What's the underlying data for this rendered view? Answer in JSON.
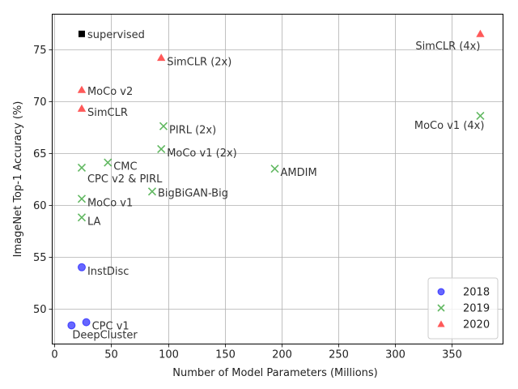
{
  "chart_data": {
    "type": "scatter",
    "title": "",
    "xlabel": "Number of Model Parameters (Millions)",
    "ylabel": "ImageNet Top-1 Accuracy (%)",
    "xlim": [
      -2,
      395
    ],
    "ylim": [
      46.6,
      78.4
    ],
    "xticks": [
      0,
      50,
      100,
      150,
      200,
      250,
      300,
      350
    ],
    "yticks": [
      50,
      55,
      60,
      65,
      70,
      75
    ],
    "grid": true,
    "legend_position": "bottom-right",
    "series": [
      {
        "name": "2018",
        "marker": "circle",
        "color": "#0000ff",
        "points": [
          {
            "label": "InstDisc",
            "x": 24,
            "y": 54.0
          },
          {
            "label": "CPC v1",
            "x": 28,
            "y": 48.7
          },
          {
            "label": "DeepCluster",
            "x": 15,
            "y": 48.4
          }
        ]
      },
      {
        "name": "2019",
        "marker": "x",
        "color": "#2ca02c",
        "points": [
          {
            "label": "CPC v2 & PIRL",
            "x": 24,
            "y": 63.6
          },
          {
            "label": "CMC",
            "x": 47,
            "y": 64.1
          },
          {
            "label": "MoCo v1",
            "x": 24,
            "y": 60.6
          },
          {
            "label": "LA",
            "x": 24,
            "y": 58.8
          },
          {
            "label": "PIRL (2x)",
            "x": 96,
            "y": 67.6
          },
          {
            "label": "MoCo v1 (2x)",
            "x": 94,
            "y": 65.4
          },
          {
            "label": "BigBiGAN-Big",
            "x": 86,
            "y": 61.3
          },
          {
            "label": "AMDIM",
            "x": 194,
            "y": 63.5
          },
          {
            "label": "MoCo v1 (4x)",
            "x": 375,
            "y": 68.6
          }
        ]
      },
      {
        "name": "2020",
        "marker": "triangle",
        "color": "#ff0000",
        "points": [
          {
            "label": "SimCLR (2x)",
            "x": 94,
            "y": 74.2
          },
          {
            "label": "MoCo v2",
            "x": 24,
            "y": 71.1
          },
          {
            "label": "SimCLR",
            "x": 24,
            "y": 69.3
          },
          {
            "label": "SimCLR (4x)",
            "x": 375,
            "y": 76.5
          }
        ]
      }
    ],
    "reference": {
      "label": "supervised",
      "x": 24,
      "y": 76.5,
      "marker": "square",
      "color": "#000000"
    }
  }
}
